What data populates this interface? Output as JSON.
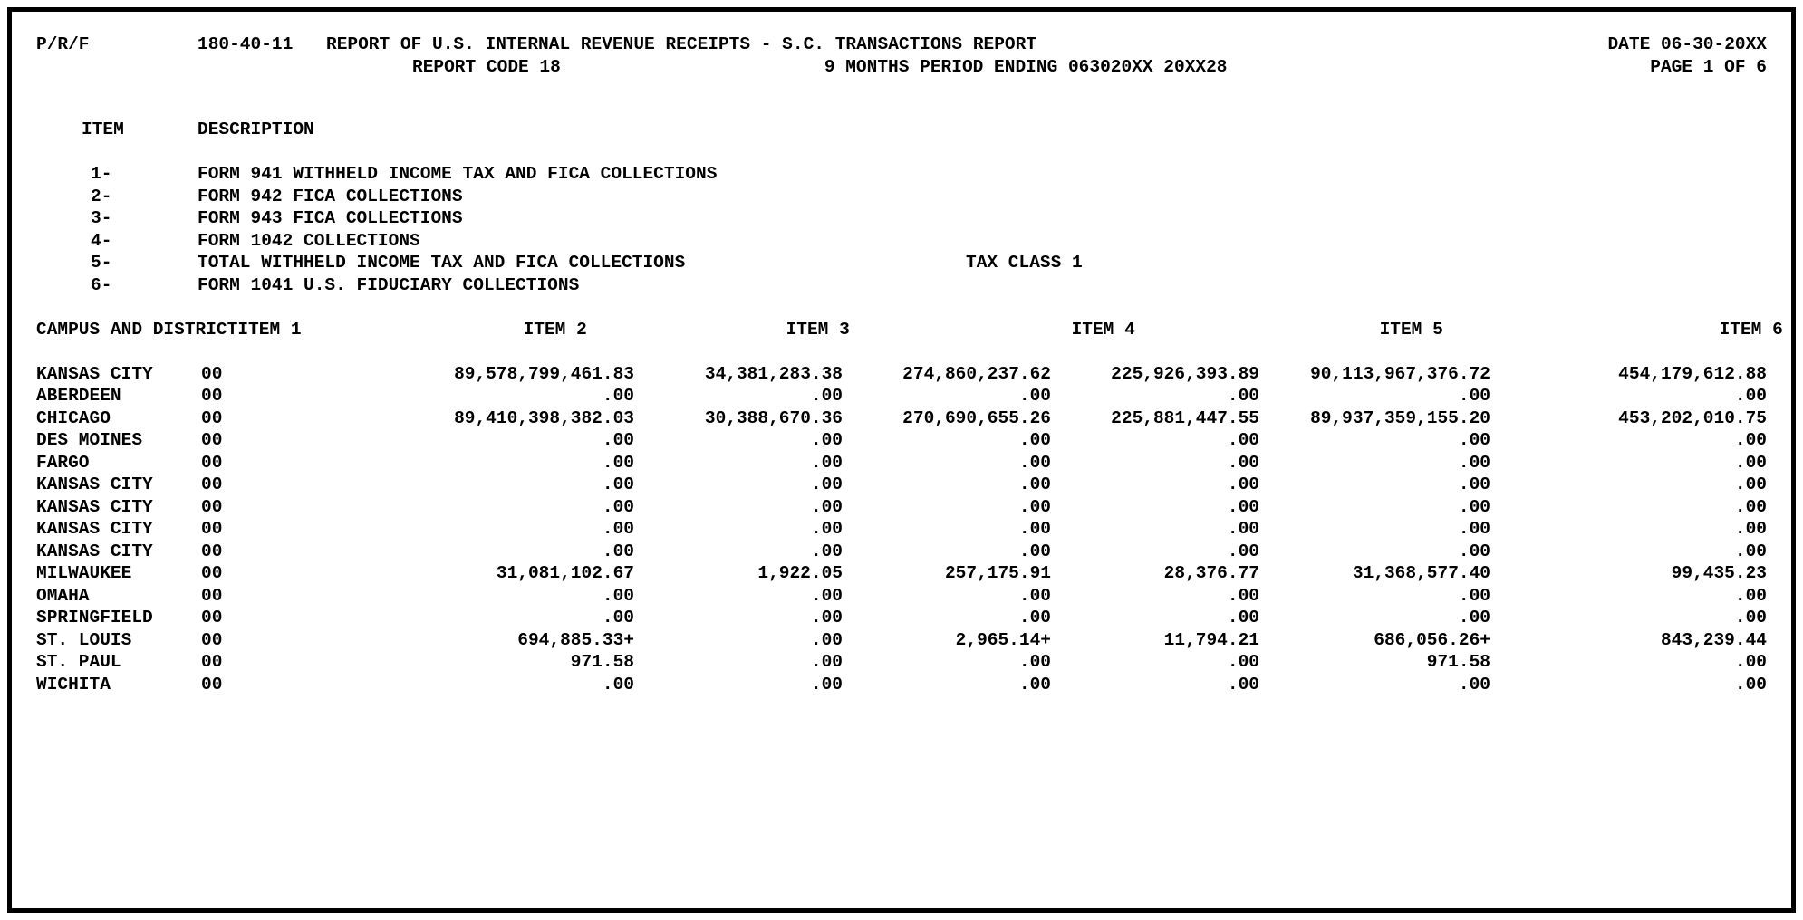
{
  "header": {
    "prf": "P/R/F",
    "report_number": "180-40-11",
    "title": "REPORT OF U.S. INTERNAL REVENUE RECEIPTS - S.C. TRANSACTIONS REPORT",
    "date": "DATE 06-30-20XX",
    "report_code": "REPORT CODE 18",
    "period": "9 MONTHS PERIOD ENDING 063020XX 20XX28",
    "page": "PAGE 1 OF 6"
  },
  "legend": {
    "item_header": "ITEM",
    "description_header": "DESCRIPTION",
    "items": [
      {
        "num": "1-",
        "desc": "FORM 941 WITHHELD INCOME TAX AND FICA COLLECTIONS",
        "note": ""
      },
      {
        "num": "2-",
        "desc": "FORM 942 FICA COLLECTIONS",
        "note": ""
      },
      {
        "num": "3-",
        "desc": "FORM 943 FICA COLLECTIONS",
        "note": ""
      },
      {
        "num": "4-",
        "desc": "FORM 1042 COLLECTIONS",
        "note": ""
      },
      {
        "num": "5-",
        "desc": "TOTAL WITHHELD INCOME TAX AND FICA COLLECTIONS",
        "note": "TAX CLASS 1"
      },
      {
        "num": "6-",
        "desc": "FORM 1041 U.S. FIDUCIARY COLLECTIONS",
        "note": ""
      }
    ]
  },
  "table": {
    "campus_header": "CAMPUS AND DISTRICT",
    "item_headers": [
      "ITEM 1",
      "ITEM 2",
      "ITEM 3",
      "ITEM 4",
      "ITEM 5",
      "ITEM 6"
    ],
    "rows": [
      {
        "campus": "KANSAS CITY",
        "district": "00",
        "items": [
          "89,578,799,461.83",
          "34,381,283.38",
          "274,860,237.62",
          "225,926,393.89",
          "90,113,967,376.72",
          "454,179,612.88"
        ]
      },
      {
        "campus": "ABERDEEN",
        "district": "00",
        "items": [
          ".00",
          ".00",
          ".00",
          ".00",
          ".00",
          ".00"
        ]
      },
      {
        "campus": "CHICAGO",
        "district": "00",
        "items": [
          "89,410,398,382.03",
          "30,388,670.36",
          "270,690,655.26",
          "225,881,447.55",
          "89,937,359,155.20",
          "453,202,010.75"
        ]
      },
      {
        "campus": "DES MOINES",
        "district": "00",
        "items": [
          ".00",
          ".00",
          ".00",
          ".00",
          ".00",
          ".00"
        ]
      },
      {
        "campus": "FARGO",
        "district": "00",
        "items": [
          ".00",
          ".00",
          ".00",
          ".00",
          ".00",
          ".00"
        ]
      },
      {
        "campus": "KANSAS CITY",
        "district": "00",
        "items": [
          ".00",
          ".00",
          ".00",
          ".00",
          ".00",
          ".00"
        ]
      },
      {
        "campus": "KANSAS CITY",
        "district": "00",
        "items": [
          ".00",
          ".00",
          ".00",
          ".00",
          ".00",
          ".00"
        ]
      },
      {
        "campus": "KANSAS CITY",
        "district": "00",
        "items": [
          ".00",
          ".00",
          ".00",
          ".00",
          ".00",
          ".00"
        ]
      },
      {
        "campus": "KANSAS CITY",
        "district": "00",
        "items": [
          ".00",
          ".00",
          ".00",
          ".00",
          ".00",
          ".00"
        ]
      },
      {
        "campus": "MILWAUKEE",
        "district": "00",
        "items": [
          "31,081,102.67",
          "1,922.05",
          "257,175.91",
          "28,376.77",
          "31,368,577.40",
          "99,435.23"
        ]
      },
      {
        "campus": "OMAHA",
        "district": "00",
        "items": [
          ".00",
          ".00",
          ".00",
          ".00",
          ".00",
          ".00"
        ]
      },
      {
        "campus": "SPRINGFIELD",
        "district": "00",
        "items": [
          ".00",
          ".00",
          ".00",
          ".00",
          ".00",
          ".00"
        ]
      },
      {
        "campus": "ST. LOUIS",
        "district": "00",
        "items": [
          "694,885.33+",
          ".00",
          "2,965.14+",
          "11,794.21",
          "686,056.26+",
          "843,239.44"
        ]
      },
      {
        "campus": "ST. PAUL",
        "district": "00",
        "items": [
          "971.58",
          ".00",
          ".00",
          ".00",
          "971.58",
          ".00"
        ]
      },
      {
        "campus": "WICHITA",
        "district": "00",
        "items": [
          ".00",
          ".00",
          ".00",
          ".00",
          ".00",
          ".00"
        ]
      }
    ]
  },
  "colors": {
    "ink": "#000000",
    "paper": "#ffffff"
  }
}
